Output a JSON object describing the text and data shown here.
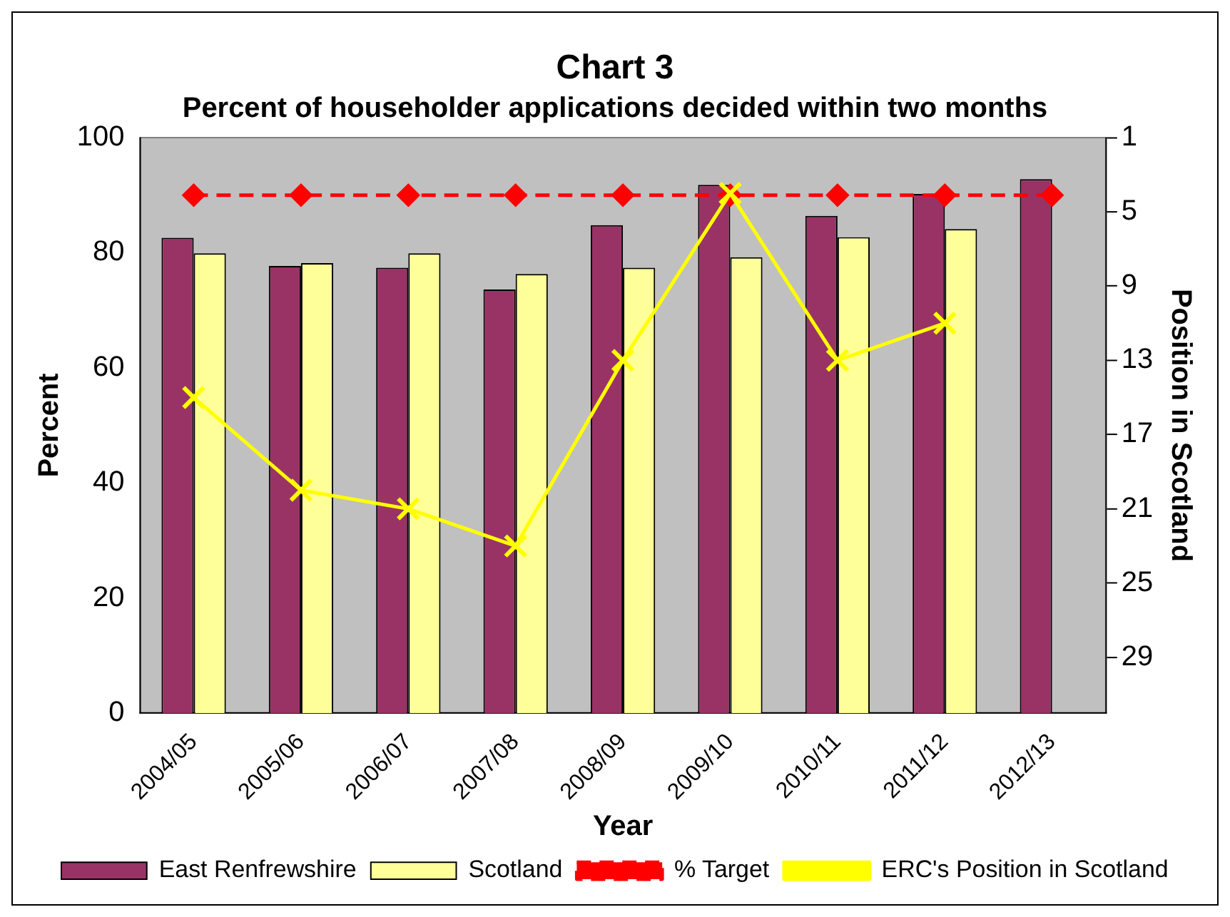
{
  "chart_data": {
    "type": "bar",
    "title": "Chart 3",
    "subtitle": "Percent of householder applications decided within two months",
    "xlabel": "Year",
    "ylabel": "Percent",
    "y2label": "Position in Scotland",
    "categories": [
      "2004/05",
      "2005/06",
      "2006/07",
      "2007/08",
      "2008/09",
      "2009/10",
      "2010/11",
      "2011/12",
      "2012/13"
    ],
    "series": [
      {
        "name": "East Renfrewshire",
        "color": "#993366",
        "values": [
          82.6,
          77.7,
          77.4,
          73.6,
          84.8,
          91.8,
          86.4,
          90.2,
          92.8
        ]
      },
      {
        "name": "Scotland",
        "color": "#ffff99",
        "values": [
          79.9,
          78.2,
          79.9,
          76.3,
          77.4,
          79.2,
          82.7,
          84.1,
          null
        ]
      },
      {
        "name": "% Target",
        "type": "line",
        "color": "#ff0000",
        "line_style": "dashed",
        "marker": "diamond",
        "values": [
          90,
          90,
          90,
          90,
          90,
          90,
          90,
          90,
          90
        ]
      },
      {
        "name": "ERC's Position in Scotland",
        "type": "line",
        "axis": "y2",
        "color": "#ffff00",
        "line_style": "solid",
        "marker": "cross",
        "values": [
          15,
          20,
          21,
          23,
          13,
          4,
          13,
          11,
          null
        ]
      }
    ],
    "ylim": [
      0,
      100
    ],
    "yticks": [
      0,
      20,
      40,
      60,
      80,
      100
    ],
    "y2lim": [
      32,
      1
    ],
    "y2ticks": [
      1,
      5,
      9,
      13,
      17,
      21,
      25,
      29
    ],
    "grid": false,
    "legend": "bottom"
  }
}
